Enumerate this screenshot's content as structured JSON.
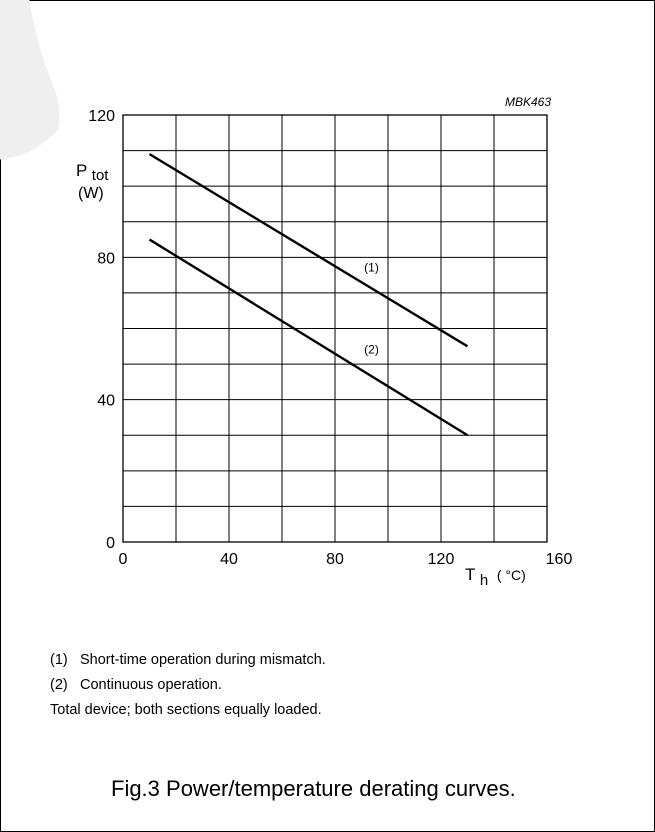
{
  "figure_code": "MBK463",
  "chart_data": {
    "type": "line",
    "y_axis": {
      "label_main": "P",
      "label_sub": "tot",
      "unit": "(W)",
      "ylim": [
        0,
        120
      ],
      "ticks": [
        0,
        40,
        80,
        120
      ],
      "tick_labels": [
        "0",
        "40",
        "80",
        "120"
      ],
      "gridlines": [
        0,
        10,
        20,
        30,
        40,
        50,
        60,
        70,
        80,
        90,
        100,
        110,
        120
      ]
    },
    "x_axis": {
      "label_main": "T",
      "label_sub": "h",
      "unit": "( °C)",
      "xlim": [
        0,
        160
      ],
      "ticks": [
        0,
        40,
        80,
        120,
        160
      ],
      "tick_labels": [
        "0",
        "40",
        "80",
        "120",
        "160"
      ],
      "gridlines": [
        0,
        20,
        40,
        60,
        80,
        100,
        120,
        140,
        160
      ]
    },
    "grid": true,
    "series": [
      {
        "label": "(1)",
        "x": [
          10,
          130
        ],
        "y": [
          109,
          55
        ],
        "label_at": [
          90,
          76
        ]
      },
      {
        "label": "(2)",
        "x": [
          10,
          130
        ],
        "y": [
          85,
          30
        ],
        "label_at": [
          90,
          53
        ]
      }
    ]
  },
  "notes": [
    {
      "num": "(1)",
      "text": "Short-time operation during mismatch."
    },
    {
      "num": "(2)",
      "text": "Continuous operation."
    },
    {
      "num": "",
      "text": "Total device; both sections equally loaded."
    }
  ],
  "caption": "Fig.3  Power/temperature derating curves."
}
